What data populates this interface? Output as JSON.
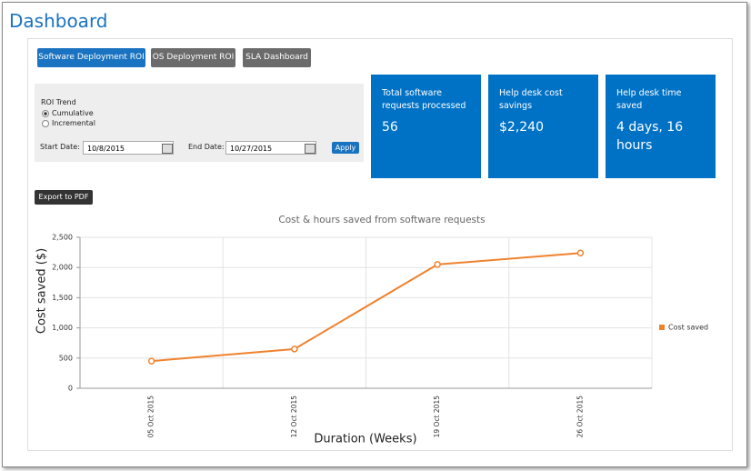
{
  "header": {
    "title": "Dashboard"
  },
  "tabs": [
    "Software Deployment ROI",
    "OS Deployment ROI",
    "SLA Dashboard"
  ],
  "form": {
    "title": "ROI Trend",
    "options": [
      "Cumulative",
      "Incremental"
    ],
    "start_label": "Start Date:",
    "start_value": "10/8/2015",
    "end_label": "End Date:",
    "end_value": "10/27/2015",
    "apply": "Apply"
  },
  "tiles": [
    {
      "label": "Total software requests processed",
      "value": "56"
    },
    {
      "label": "Help desk cost savings",
      "value": "$2,240"
    },
    {
      "label": "Help desk time saved",
      "value": "4 days, 16 hours"
    }
  ],
  "export": "Export to PDF",
  "chart_data": {
    "type": "line",
    "title": "Cost & hours saved from software requests",
    "x_label": "Duration (Weeks)",
    "y_label": "Cost saved ($)",
    "categories": [
      "05 Oct 2015",
      "12 Oct 2015",
      "19 Oct 2015",
      "26 Oct 2015"
    ],
    "series": [
      {
        "name": "Cost saved",
        "color": "#f0822e",
        "values": [
          450,
          650,
          2050,
          2240
        ]
      }
    ],
    "ylim": [
      0,
      2500
    ],
    "yticks": [
      0,
      500,
      {
        "value": 1000,
        "label": "1,000"
      },
      {
        "value": 1500,
        "label": "1,500"
      },
      {
        "value": 2000,
        "label": "2,000"
      },
      {
        "value": 2500,
        "label": "2,500"
      }
    ],
    "grid": true,
    "legend": "right"
  }
}
